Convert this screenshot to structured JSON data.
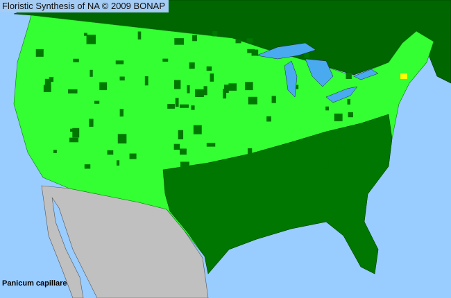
{
  "header": {
    "title": "Floristic Synthesis of NA © 2009 BONAP"
  },
  "map": {
    "species": "Panicum capillare",
    "colors": {
      "ocean": "#99ccff",
      "canada": "#006600",
      "present_state": "#33ff33",
      "present_county": "#007700",
      "mexico": "#c0c0c0",
      "noxious_or_rare": "#ffff00",
      "lakes": "#4aaaf0"
    }
  }
}
